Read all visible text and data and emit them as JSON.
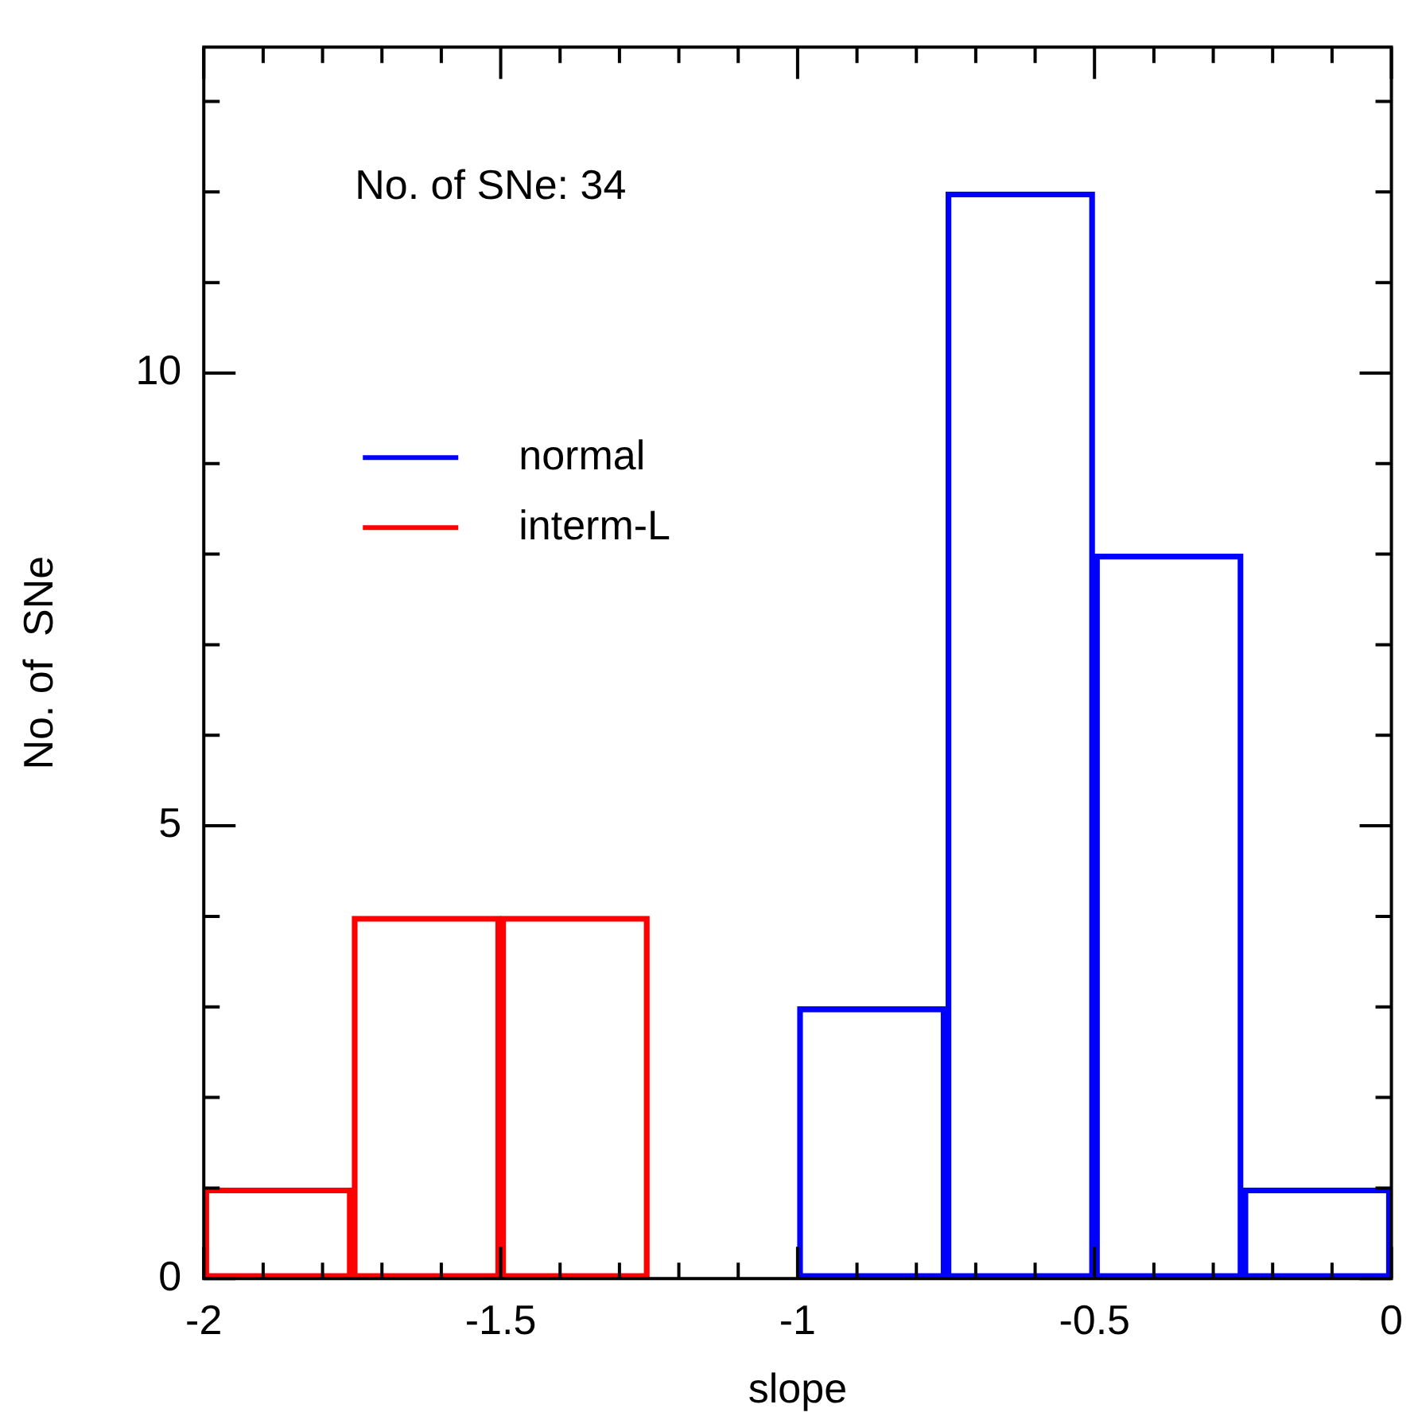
{
  "chart_data": {
    "type": "histogram",
    "xlabel": "slope",
    "ylabel": "No. of  SNe",
    "bins": [
      -2,
      -1.75,
      -1.5,
      -1.25,
      -1,
      -0.75,
      -0.5,
      -0.25,
      0
    ],
    "series": [
      {
        "name": "normal",
        "color": "#0000ff",
        "values": [
          0,
          0,
          0,
          0,
          3,
          12,
          8,
          1
        ]
      },
      {
        "name": "interm-L",
        "color": "#ff0000",
        "values": [
          1,
          4,
          4,
          0,
          0,
          0,
          0,
          0
        ]
      }
    ],
    "xlim": [
      -2,
      0
    ],
    "xticks": [
      -2,
      {
        "value": -1.9,
        "label": null
      },
      {
        "value": -1.8,
        "label": null
      },
      {
        "value": -1.7,
        "label": null
      },
      {
        "value": -1.6,
        "label": null
      },
      -1.5,
      {
        "value": -1.4,
        "label": null
      },
      {
        "value": -1.3,
        "label": null
      },
      {
        "value": -1.2,
        "label": null
      },
      {
        "value": -1.1,
        "label": null
      },
      -1,
      {
        "value": -0.9,
        "label": null
      },
      {
        "value": -0.8,
        "label": null
      },
      {
        "value": -0.7,
        "label": null
      },
      {
        "value": -0.6,
        "label": null
      },
      -0.5,
      {
        "value": -0.4,
        "label": null
      },
      {
        "value": -0.3,
        "label": null
      },
      {
        "value": -0.2,
        "label": null
      },
      {
        "value": -0.1,
        "label": null
      },
      0
    ],
    "ylim": [
      0,
      13.6
    ],
    "yticks": [
      0,
      {
        "value": 1,
        "label": null
      },
      {
        "value": 2,
        "label": null
      },
      {
        "value": 3,
        "label": null
      },
      {
        "value": 4,
        "label": null
      },
      5,
      {
        "value": 6,
        "label": null
      },
      {
        "value": 7,
        "label": null
      },
      {
        "value": 8,
        "label": null
      },
      {
        "value": 9,
        "label": null
      },
      10,
      {
        "value": 11,
        "label": null
      },
      {
        "value": 12,
        "label": null
      },
      {
        "value": 13,
        "label": null
      }
    ],
    "grid": false,
    "legend": "top left",
    "annotations": [
      "No. of SNe: 34"
    ]
  }
}
